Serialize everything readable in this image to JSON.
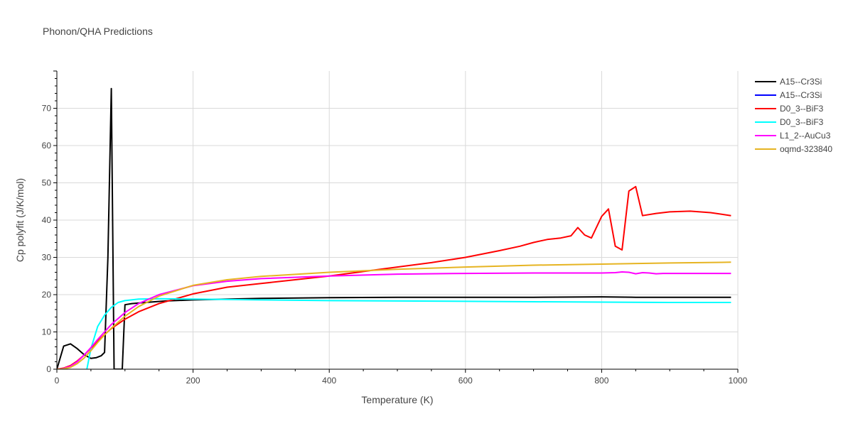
{
  "chart_data": {
    "type": "line",
    "title": "Phonon/QHA Predictions",
    "xlabel": "Temperature (K)",
    "ylabel": "Cp polyfit (J/K/mol)",
    "xlim": [
      0,
      1000
    ],
    "ylim": [
      0,
      80
    ],
    "x_ticks": [
      0,
      200,
      400,
      600,
      800,
      1000
    ],
    "y_ticks": [
      0,
      10,
      20,
      30,
      40,
      50,
      60,
      70
    ],
    "grid": true,
    "legend_position": "right",
    "series": [
      {
        "name": "A15--Cr3Si",
        "color": "#000000",
        "points": [
          [
            0,
            0
          ],
          [
            10,
            6.2
          ],
          [
            20,
            6.8
          ],
          [
            30,
            5.5
          ],
          [
            40,
            3.9
          ],
          [
            50,
            2.9
          ],
          [
            58,
            3.1
          ],
          [
            65,
            3.6
          ],
          [
            70,
            4.5
          ],
          [
            75,
            30
          ],
          [
            80,
            75.3
          ],
          [
            84,
            0
          ],
          [
            96,
            0
          ],
          [
            100,
            17.3
          ],
          [
            110,
            17.6
          ],
          [
            130,
            17.9
          ],
          [
            160,
            18.3
          ],
          [
            200,
            18.6
          ],
          [
            300,
            19.0
          ],
          [
            400,
            19.2
          ],
          [
            500,
            19.3
          ],
          [
            600,
            19.3
          ],
          [
            700,
            19.3
          ],
          [
            800,
            19.4
          ],
          [
            850,
            19.3
          ],
          [
            900,
            19.3
          ],
          [
            950,
            19.3
          ],
          [
            990,
            19.3
          ]
        ]
      },
      {
        "name": "A15--Cr3Si",
        "color": "#0000ff",
        "points": []
      },
      {
        "name": "D0_3--BiF3",
        "color": "#ff0000",
        "points": [
          [
            0,
            0
          ],
          [
            10,
            0.3
          ],
          [
            20,
            1.0
          ],
          [
            30,
            2.2
          ],
          [
            40,
            3.8
          ],
          [
            50,
            5.6
          ],
          [
            60,
            7.5
          ],
          [
            70,
            9.3
          ],
          [
            80,
            10.9
          ],
          [
            100,
            13.4
          ],
          [
            120,
            15.4
          ],
          [
            150,
            17.6
          ],
          [
            200,
            20.2
          ],
          [
            250,
            22.0
          ],
          [
            300,
            23.0
          ],
          [
            350,
            24.0
          ],
          [
            400,
            25.0
          ],
          [
            450,
            26.2
          ],
          [
            500,
            27.4
          ],
          [
            550,
            28.6
          ],
          [
            600,
            30.0
          ],
          [
            650,
            31.8
          ],
          [
            680,
            33.0
          ],
          [
            700,
            34.0
          ],
          [
            720,
            34.8
          ],
          [
            740,
            35.2
          ],
          [
            755,
            35.8
          ],
          [
            765,
            38.0
          ],
          [
            775,
            36.0
          ],
          [
            785,
            35.2
          ],
          [
            800,
            41.0
          ],
          [
            810,
            43.0
          ],
          [
            820,
            33.0
          ],
          [
            830,
            32.0
          ],
          [
            840,
            47.8
          ],
          [
            850,
            49.0
          ],
          [
            860,
            41.2
          ],
          [
            880,
            41.8
          ],
          [
            900,
            42.2
          ],
          [
            930,
            42.4
          ],
          [
            960,
            42.0
          ],
          [
            990,
            41.2
          ]
        ]
      },
      {
        "name": "D0_3--BiF3",
        "color": "#00ffff",
        "points": [
          [
            44,
            0
          ],
          [
            50,
            5.5
          ],
          [
            60,
            11.5
          ],
          [
            70,
            14.5
          ],
          [
            80,
            16.6
          ],
          [
            90,
            17.9
          ],
          [
            100,
            18.4
          ],
          [
            120,
            18.8
          ],
          [
            150,
            18.9
          ],
          [
            200,
            18.8
          ],
          [
            300,
            18.6
          ],
          [
            400,
            18.4
          ],
          [
            500,
            18.3
          ],
          [
            600,
            18.2
          ],
          [
            700,
            18.1
          ],
          [
            800,
            18.0
          ],
          [
            900,
            17.9
          ],
          [
            990,
            17.9
          ]
        ]
      },
      {
        "name": "L1_2--AuCu3",
        "color": "#ff00ff",
        "points": [
          [
            0,
            0
          ],
          [
            10,
            0.2
          ],
          [
            20,
            0.8
          ],
          [
            30,
            2.0
          ],
          [
            40,
            3.8
          ],
          [
            50,
            5.8
          ],
          [
            60,
            8.0
          ],
          [
            70,
            10.0
          ],
          [
            80,
            12.0
          ],
          [
            100,
            15.2
          ],
          [
            120,
            17.6
          ],
          [
            150,
            20.0
          ],
          [
            200,
            22.4
          ],
          [
            250,
            23.6
          ],
          [
            300,
            24.3
          ],
          [
            400,
            25.0
          ],
          [
            500,
            25.5
          ],
          [
            600,
            25.7
          ],
          [
            700,
            25.8
          ],
          [
            800,
            25.8
          ],
          [
            820,
            25.9
          ],
          [
            830,
            26.1
          ],
          [
            840,
            26.0
          ],
          [
            850,
            25.6
          ],
          [
            860,
            25.9
          ],
          [
            870,
            25.8
          ],
          [
            880,
            25.6
          ],
          [
            890,
            25.7
          ],
          [
            950,
            25.7
          ],
          [
            990,
            25.7
          ]
        ]
      },
      {
        "name": "oqmd-323840",
        "color": "#e6b422",
        "points": [
          [
            0,
            0
          ],
          [
            10,
            0.1
          ],
          [
            20,
            0.5
          ],
          [
            30,
            1.5
          ],
          [
            40,
            3.0
          ],
          [
            50,
            5.0
          ],
          [
            60,
            7.2
          ],
          [
            70,
            9.2
          ],
          [
            80,
            11.0
          ],
          [
            100,
            14.2
          ],
          [
            120,
            16.8
          ],
          [
            150,
            19.6
          ],
          [
            200,
            22.5
          ],
          [
            250,
            24.0
          ],
          [
            300,
            24.9
          ],
          [
            400,
            26.0
          ],
          [
            500,
            26.8
          ],
          [
            600,
            27.4
          ],
          [
            700,
            27.9
          ],
          [
            800,
            28.2
          ],
          [
            900,
            28.5
          ],
          [
            990,
            28.7
          ]
        ]
      }
    ]
  }
}
